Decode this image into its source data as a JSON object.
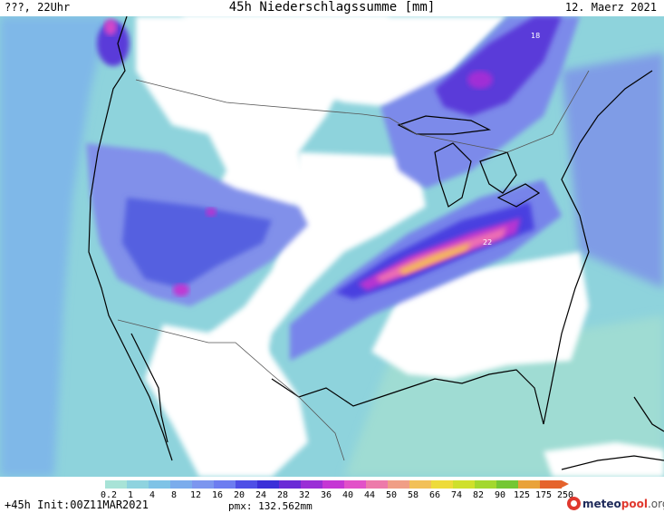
{
  "header": {
    "left": "???, 22Uhr",
    "title": "45h Niederschlagssumme [mm]",
    "date": "12. Maerz 2021"
  },
  "map": {
    "land_color": "#ffffff",
    "point_labels": [
      "18",
      "22"
    ]
  },
  "colorbar": {
    "labels": [
      "0.2",
      "1",
      "4",
      "8",
      "12",
      "16",
      "20",
      "24",
      "28",
      "32",
      "36",
      "40",
      "44",
      "50",
      "58",
      "66",
      "74",
      "82",
      "90",
      "125",
      "175",
      "250"
    ],
    "colors": [
      "#a8e3d7",
      "#8fd3df",
      "#7fc3e6",
      "#7bacec",
      "#7c96ef",
      "#6d7df0",
      "#4e4fe6",
      "#3b2fd8",
      "#6a2bd6",
      "#9a2ed6",
      "#c536d4",
      "#e251c8",
      "#ed7aaa",
      "#f09e86",
      "#f2c058",
      "#eedb3a",
      "#cfe02c",
      "#a3d82e",
      "#74c733",
      "#e9a23a",
      "#e5632c"
    ]
  },
  "footer": {
    "init": "+45h Init:00Z11MAR2021",
    "pmx": "pmx: 132.562mm",
    "logo": [
      "meteo",
      "pool",
      ".org"
    ]
  }
}
